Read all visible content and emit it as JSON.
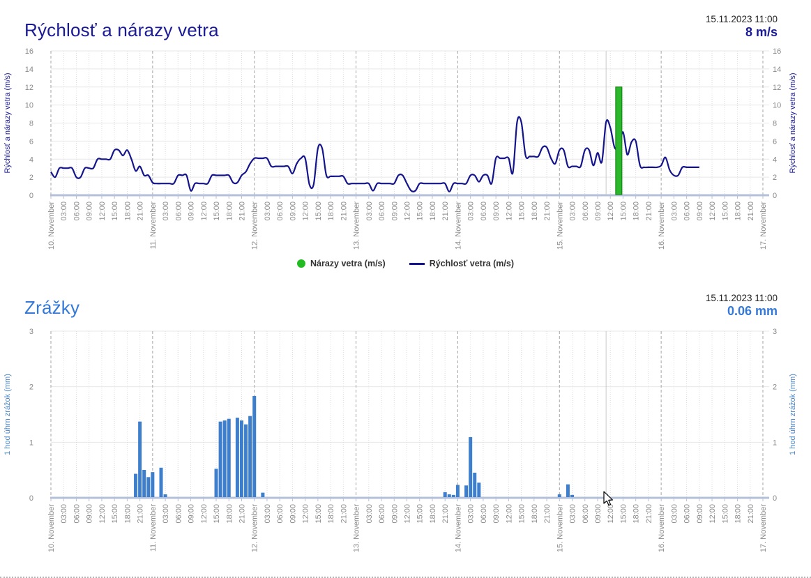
{
  "wind_chart": {
    "title": "Rýchlosť a nárazy vetra",
    "timestamp": "15.11.2023 11:00",
    "current_value": "8 m/s",
    "y_axis_label": "Rýchlosť a nárazy vetra (m/s)",
    "y_ticks": [
      0,
      2,
      4,
      6,
      8,
      10,
      12,
      14,
      16
    ],
    "legend": [
      {
        "label": "Nárazy vetra (m/s)",
        "color": "#22bb22",
        "type": "dot"
      },
      {
        "label": "Rýchlosť vetra (m/s)",
        "color": "#14148c",
        "type": "line"
      }
    ]
  },
  "precip_chart": {
    "title": "Zrážky",
    "timestamp": "15.11.2023 11:00",
    "current_value": "0.06 mm",
    "y_axis_label": "1 hod úhrn zrážok (mm)",
    "y_ticks": [
      0,
      1,
      2,
      3
    ]
  },
  "x_axis": {
    "day_labels": [
      "10. November",
      "11. November",
      "12. November",
      "13. November",
      "14. November",
      "15. November",
      "16. November",
      "17. November"
    ],
    "hour_labels": [
      "03:00",
      "06:00",
      "09:00",
      "12:00",
      "15:00",
      "18:00",
      "21:00"
    ]
  },
  "chart_data": [
    {
      "type": "line",
      "name": "Rýchlosť vetra (m/s)",
      "color": "#14148c",
      "start": "10.11.2023 00:00",
      "interval_hours": 1,
      "ylim": [
        0,
        16
      ],
      "values": [
        2.6,
        2,
        3,
        3,
        3,
        3,
        2,
        2,
        3,
        3,
        3,
        4,
        4,
        4,
        4,
        5,
        5,
        4.4,
        5,
        4,
        2.7,
        3.2,
        2.2,
        2.2,
        1.4,
        1.3,
        1.3,
        1.3,
        1.3,
        1.3,
        2.2,
        2.2,
        2.2,
        0.5,
        1.3,
        1.3,
        1.3,
        1.3,
        2.2,
        2.2,
        2.2,
        2.2,
        2.2,
        1.4,
        1.4,
        2.2,
        2.6,
        3.5,
        4.1,
        4.1,
        4.1,
        4.1,
        3.2,
        3.2,
        3.2,
        3.2,
        3.2,
        2.4,
        3.5,
        4.1,
        4.1,
        1.2,
        1.2,
        5.2,
        5.2,
        2.2,
        2.1,
        2.1,
        2.1,
        2.1,
        1.3,
        1.3,
        1.3,
        1.3,
        1.3,
        1.3,
        0.5,
        1.3,
        1.3,
        1.3,
        1.3,
        1.3,
        2.2,
        2.2,
        1.3,
        0.5,
        0.5,
        1.3,
        1.3,
        1.3,
        1.3,
        1.3,
        1.3,
        1.3,
        0.4,
        1.3,
        1.3,
        1.3,
        1.3,
        2.2,
        2.2,
        1.5,
        2.2,
        2.2,
        1.3,
        4.1,
        4.1,
        4.1,
        4.1,
        2.5,
        8.1,
        8.1,
        4.4,
        4.3,
        4.3,
        4.3,
        5.3,
        5.3,
        4.1,
        3.5,
        5,
        5,
        3.2,
        3.2,
        3.2,
        3.2,
        5,
        5,
        3.3,
        4.7,
        3.7,
        8.1,
        7.5,
        5.3,
        5.4,
        7,
        4.5,
        5.9,
        6,
        3.3,
        3.1,
        3.1,
        3.1,
        3.1,
        3.3,
        4.2,
        2.8,
        2.2,
        2.2,
        3.1,
        3.1,
        3.1,
        3.1,
        3.1
      ]
    },
    {
      "type": "bar",
      "name": "Nárazy vetra (m/s)",
      "color": "#2cb82c",
      "border_color": "#0a7a0a",
      "ylim": [
        0,
        16
      ],
      "points": [
        {
          "label": "15.11. 14:00",
          "t_hours": 134,
          "value": 12
        }
      ]
    },
    {
      "type": "bar",
      "name": "1 hod úhrn zrážok (mm)",
      "color": "#3d7fcc",
      "ylim": [
        0,
        3
      ],
      "points": [
        {
          "label": "10.11. 20:00",
          "t_hours": 20,
          "value": 0.42
        },
        {
          "label": "10.11. 21:00",
          "t_hours": 21,
          "value": 1.36
        },
        {
          "label": "10.11. 22:00",
          "t_hours": 22,
          "value": 0.49
        },
        {
          "label": "10.11. 23:00",
          "t_hours": 23,
          "value": 0.36
        },
        {
          "label": "11.11. 00:00",
          "t_hours": 24,
          "value": 0.45
        },
        {
          "label": "11.11. 02:00",
          "t_hours": 26,
          "value": 0.53
        },
        {
          "label": "11.11. 03:00",
          "t_hours": 27,
          "value": 0.05
        },
        {
          "label": "11.11. 15:00",
          "t_hours": 39,
          "value": 0.51
        },
        {
          "label": "11.11. 16:00",
          "t_hours": 40,
          "value": 1.36
        },
        {
          "label": "11.11. 17:00",
          "t_hours": 41,
          "value": 1.38
        },
        {
          "label": "11.11. 18:00",
          "t_hours": 42,
          "value": 1.41
        },
        {
          "label": "11.11. 20:00",
          "t_hours": 44,
          "value": 1.43
        },
        {
          "label": "11.11. 21:00",
          "t_hours": 45,
          "value": 1.38
        },
        {
          "label": "11.11. 22:00",
          "t_hours": 46,
          "value": 1.31
        },
        {
          "label": "11.11. 23:00",
          "t_hours": 47,
          "value": 1.46
        },
        {
          "label": "12.11. 00:00",
          "t_hours": 48,
          "value": 1.82
        },
        {
          "label": "12.11. 02:00",
          "t_hours": 50,
          "value": 0.08
        },
        {
          "label": "13.11. 21:00",
          "t_hours": 93,
          "value": 0.09
        },
        {
          "label": "13.11. 22:00",
          "t_hours": 94,
          "value": 0.05
        },
        {
          "label": "13.11. 23:00",
          "t_hours": 95,
          "value": 0.04
        },
        {
          "label": "14.11. 00:00",
          "t_hours": 96,
          "value": 0.22
        },
        {
          "label": "14.11. 02:00",
          "t_hours": 98,
          "value": 0.21
        },
        {
          "label": "14.11. 03:00",
          "t_hours": 99,
          "value": 1.08
        },
        {
          "label": "14.11. 04:00",
          "t_hours": 100,
          "value": 0.44
        },
        {
          "label": "14.11. 05:00",
          "t_hours": 101,
          "value": 0.26
        },
        {
          "label": "15.11. 00:00",
          "t_hours": 120,
          "value": 0.05
        },
        {
          "label": "15.11. 02:00",
          "t_hours": 122,
          "value": 0.23
        },
        {
          "label": "15.11. 03:00",
          "t_hours": 123,
          "value": 0.04
        },
        {
          "label": "15.11. 11:00",
          "t_hours": 131,
          "value": 0.06
        }
      ]
    }
  ],
  "cursor": {
    "hover_time": "15.11.2023 11:00",
    "hover_t_hours": 131
  }
}
